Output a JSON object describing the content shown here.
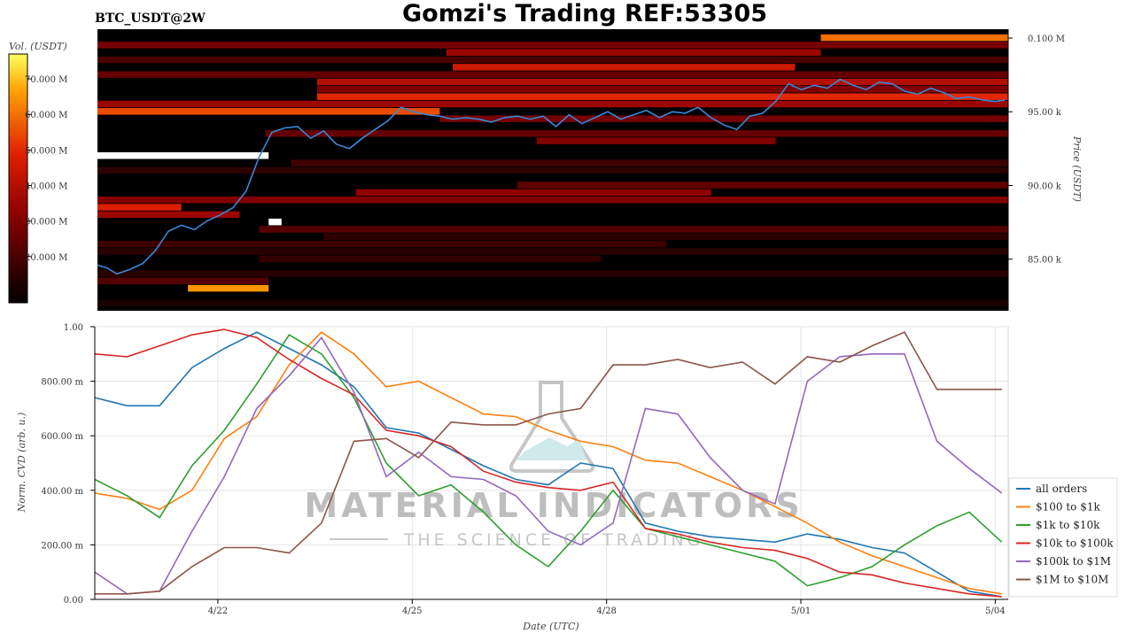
{
  "header": {
    "title": "Gomzi's Trading REF:53305",
    "symbol": "BTC_USDT@2W"
  },
  "watermark": {
    "line1": "MATERIAL INDICATORS",
    "line2": "THE SCIENCE OF TRADING"
  },
  "colors": {
    "heatmap_bg": "#000000",
    "price_line": "#3a88d8",
    "all_orders": "#1f77b4",
    "usd100_1k": "#ff7f0e",
    "usd1k_10k": "#2ca02c",
    "usd10k_100k": "#d62728",
    "usd100k_1m": "#9467bd",
    "usd1m_10m": "#8c564b"
  },
  "chart_data": [
    {
      "type": "heatmap",
      "panel": "orderbook-heatmap",
      "colorbar": {
        "label": "Vol. (USDT)",
        "tick_labels": [
          "70.000 M",
          "60.000 M",
          "50.000 M",
          "40.000 M",
          "30.000 M",
          "20.000 M"
        ],
        "tick_values": [
          70,
          60,
          50,
          40,
          30,
          20
        ],
        "range": [
          7,
          77
        ]
      },
      "ylabel": "Price (USDT)",
      "y_tick_labels": [
        "0.100 M",
        "95.00 k",
        "90.00 k",
        "85.00 k"
      ],
      "y_tick_values": [
        100000,
        95000,
        90000,
        85000
      ],
      "ylim": [
        81500,
        100600
      ],
      "x_range_days": [
        0,
        14.1
      ],
      "price_series": {
        "name": "price",
        "x": [
          0,
          0.15,
          0.3,
          0.5,
          0.7,
          0.9,
          1.1,
          1.3,
          1.5,
          1.7,
          1.9,
          2.1,
          2.3,
          2.5,
          2.7,
          2.9,
          3.1,
          3.3,
          3.5,
          3.7,
          3.9,
          4.1,
          4.3,
          4.5,
          4.7,
          4.9,
          5.1,
          5.3,
          5.5,
          5.7,
          5.9,
          6.1,
          6.3,
          6.5,
          6.7,
          6.9,
          7.1,
          7.3,
          7.5,
          7.7,
          7.9,
          8.1,
          8.3,
          8.5,
          8.7,
          8.9,
          9.1,
          9.3,
          9.5,
          9.7,
          9.9,
          10.1,
          10.3,
          10.5,
          10.7,
          10.9,
          11.1,
          11.3,
          11.5,
          11.7,
          11.9,
          12.1,
          12.3,
          12.5,
          12.7,
          12.9,
          13.1,
          13.3,
          13.5,
          13.7,
          13.9,
          14.05
        ],
        "y": [
          84600,
          84400,
          84000,
          84300,
          84700,
          85600,
          86900,
          87300,
          87000,
          87600,
          88000,
          88500,
          89600,
          91900,
          93600,
          93900,
          94000,
          93200,
          93700,
          92800,
          92500,
          93200,
          93800,
          94400,
          95300,
          95000,
          94800,
          94700,
          94500,
          94600,
          94500,
          94300,
          94600,
          94700,
          94500,
          94700,
          94000,
          94800,
          94200,
          94600,
          95000,
          94500,
          94800,
          95100,
          94600,
          95000,
          94900,
          95300,
          94600,
          94100,
          93800,
          94700,
          94900,
          95700,
          96900,
          96500,
          96800,
          96600,
          97200,
          96800,
          96500,
          97000,
          96900,
          96400,
          96200,
          96600,
          96300,
          95900,
          96000,
          95800,
          95700,
          95800
        ]
      },
      "bands": [
        {
          "y": 100000,
          "x": [
            11.2,
            14.1
          ],
          "level": 60
        },
        {
          "y": 99500,
          "x": [
            0,
            14.1
          ],
          "level": 28
        },
        {
          "y": 99000,
          "x": [
            5.4,
            11.2
          ],
          "level": 35
        },
        {
          "y": 98500,
          "x": [
            0,
            14.1
          ],
          "level": 20
        },
        {
          "y": 98000,
          "x": [
            5.5,
            10.8
          ],
          "level": 45
        },
        {
          "y": 97500,
          "x": [
            0,
            14.1
          ],
          "level": 25
        },
        {
          "y": 97000,
          "x": [
            3.4,
            14.1
          ],
          "level": 40
        },
        {
          "y": 96500,
          "x": [
            3.4,
            14.1
          ],
          "level": 30
        },
        {
          "y": 96000,
          "x": [
            3.4,
            14.1
          ],
          "level": 50
        },
        {
          "y": 95500,
          "x": [
            0,
            14.1
          ],
          "level": 35
        },
        {
          "y": 95000,
          "x": [
            0,
            5.3
          ],
          "level": 55
        },
        {
          "y": 94500,
          "x": [
            5.3,
            14.1
          ],
          "level": 28
        },
        {
          "y": 93500,
          "x": [
            2.6,
            14.1
          ],
          "level": 25
        },
        {
          "y": 93000,
          "x": [
            6.8,
            10.5
          ],
          "level": 30
        },
        {
          "y": 92000,
          "x": [
            0,
            2.65
          ],
          "level": 77
        },
        {
          "y": 91500,
          "x": [
            3.0,
            14.1
          ],
          "level": 18
        },
        {
          "y": 91000,
          "x": [
            0,
            14.1
          ],
          "level": 15
        },
        {
          "y": 90000,
          "x": [
            6.5,
            14.1
          ],
          "level": 24
        },
        {
          "y": 89500,
          "x": [
            4.0,
            9.5
          ],
          "level": 32
        },
        {
          "y": 89000,
          "x": [
            0,
            14.1
          ],
          "level": 30
        },
        {
          "y": 88500,
          "x": [
            0,
            1.3
          ],
          "level": 48
        },
        {
          "y": 88000,
          "x": [
            0,
            2.2
          ],
          "level": 35
        },
        {
          "y": 87500,
          "x": [
            2.65,
            2.85
          ],
          "level": 77
        },
        {
          "y": 87000,
          "x": [
            2.5,
            14.1
          ],
          "level": 22
        },
        {
          "y": 86500,
          "x": [
            3.5,
            14.1
          ],
          "level": 15
        },
        {
          "y": 86000,
          "x": [
            0,
            8.8
          ],
          "level": 18
        },
        {
          "y": 85500,
          "x": [
            0,
            14.1
          ],
          "level": 14
        },
        {
          "y": 85000,
          "x": [
            2.5,
            7.8
          ],
          "level": 16
        },
        {
          "y": 84000,
          "x": [
            0,
            14.1
          ],
          "level": 14
        },
        {
          "y": 83500,
          "x": [
            0,
            2.65
          ],
          "level": 22
        },
        {
          "y": 83000,
          "x": [
            1.4,
            2.65
          ],
          "level": 65
        },
        {
          "y": 82000,
          "x": [
            0,
            14.1
          ],
          "level": 12
        }
      ]
    },
    {
      "type": "line",
      "panel": "cvd",
      "xlabel": "Date (UTC)",
      "ylabel": "Norm. CVD (arb. u.)",
      "ylim": [
        0,
        1
      ],
      "y_ticks": [
        0,
        0.2,
        0.4,
        0.6,
        0.8,
        1.0
      ],
      "y_tick_labels": [
        "0.00",
        "200.00 m",
        "400.00 m",
        "600.00 m",
        "800.00 m",
        "1.00"
      ],
      "x_ticks": [
        1.9,
        4.9,
        7.9,
        10.9,
        13.9
      ],
      "x_tick_labels": [
        "4/22",
        "4/25",
        "4/28",
        "5/01",
        "5/04"
      ],
      "x_range": [
        0,
        14.1
      ],
      "x": [
        0,
        0.5,
        1,
        1.5,
        2,
        2.5,
        3,
        3.5,
        4,
        4.5,
        5,
        5.5,
        6,
        6.5,
        7,
        7.5,
        8,
        8.5,
        9,
        9.5,
        10,
        10.5,
        11,
        11.5,
        12,
        12.5,
        13,
        13.5,
        14
      ],
      "legend": {
        "position": "bottom-right"
      },
      "series": [
        {
          "name": "all orders",
          "color_key": "all_orders",
          "values": [
            0.74,
            0.71,
            0.71,
            0.85,
            0.92,
            0.98,
            0.92,
            0.86,
            0.78,
            0.63,
            0.61,
            0.55,
            0.49,
            0.44,
            0.42,
            0.5,
            0.48,
            0.28,
            0.25,
            0.23,
            0.22,
            0.21,
            0.24,
            0.22,
            0.19,
            0.17,
            0.1,
            0.03,
            0.01
          ]
        },
        {
          "name": "$100 to $1k",
          "color_key": "usd100_1k",
          "values": [
            0.39,
            0.37,
            0.33,
            0.4,
            0.59,
            0.67,
            0.86,
            0.98,
            0.9,
            0.78,
            0.8,
            0.74,
            0.68,
            0.67,
            0.62,
            0.58,
            0.56,
            0.51,
            0.5,
            0.45,
            0.4,
            0.34,
            0.28,
            0.21,
            0.16,
            0.12,
            0.08,
            0.04,
            0.02
          ]
        },
        {
          "name": "$1k to $10k",
          "color_key": "usd1k_10k",
          "values": [
            0.44,
            0.38,
            0.3,
            0.49,
            0.62,
            0.79,
            0.97,
            0.9,
            0.74,
            0.5,
            0.38,
            0.42,
            0.32,
            0.2,
            0.12,
            0.25,
            0.4,
            0.26,
            0.23,
            0.2,
            0.17,
            0.14,
            0.05,
            0.08,
            0.12,
            0.2,
            0.27,
            0.32,
            0.21
          ]
        },
        {
          "name": "$10k to $100k",
          "color_key": "usd10k_100k",
          "values": [
            0.9,
            0.89,
            0.93,
            0.97,
            0.99,
            0.96,
            0.88,
            0.81,
            0.75,
            0.62,
            0.6,
            0.56,
            0.47,
            0.43,
            0.41,
            0.4,
            0.43,
            0.26,
            0.24,
            0.21,
            0.19,
            0.18,
            0.15,
            0.1,
            0.09,
            0.06,
            0.04,
            0.02,
            0.01
          ]
        },
        {
          "name": "$100k to $1M",
          "color_key": "usd100k_1m",
          "values": [
            0.1,
            0.02,
            0.03,
            0.25,
            0.45,
            0.7,
            0.82,
            0.96,
            0.76,
            0.45,
            0.54,
            0.45,
            0.44,
            0.38,
            0.25,
            0.2,
            0.28,
            0.7,
            0.68,
            0.52,
            0.4,
            0.35,
            0.8,
            0.89,
            0.9,
            0.9,
            0.58,
            0.48,
            0.39
          ]
        },
        {
          "name": "$1M to $10M",
          "color_key": "usd1m_10m",
          "values": [
            0.02,
            0.02,
            0.03,
            0.12,
            0.19,
            0.19,
            0.17,
            0.28,
            0.58,
            0.59,
            0.52,
            0.65,
            0.64,
            0.64,
            0.68,
            0.7,
            0.86,
            0.86,
            0.88,
            0.85,
            0.87,
            0.79,
            0.89,
            0.87,
            0.93,
            0.98,
            0.77,
            0.77,
            0.77
          ]
        }
      ]
    }
  ]
}
